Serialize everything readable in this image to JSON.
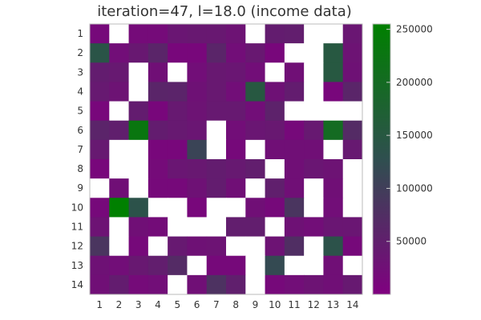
{
  "chart_data": {
    "type": "heatmap",
    "title": "iteration=47, l=18.0 (income data)",
    "xlabel": "",
    "ylabel": "",
    "x_categories": [
      "1",
      "2",
      "3",
      "4",
      "5",
      "6",
      "7",
      "8",
      "9",
      "10",
      "11",
      "12",
      "13",
      "14"
    ],
    "y_categories": [
      "1",
      "2",
      "3",
      "4",
      "5",
      "6",
      "7",
      "8",
      "9",
      "10",
      "11",
      "12",
      "13",
      "14"
    ],
    "colorbar": {
      "min": 0,
      "max": 255000,
      "ticks": [
        50000,
        100000,
        150000,
        200000,
        250000
      ],
      "tick_labels": [
        "50000",
        "100000",
        "150000",
        "200000",
        "250000"
      ]
    },
    "colors": {
      "low": "#800080",
      "mid": "#2f4f4f",
      "high": "#008000",
      "empty": "#ffffff"
    },
    "values": [
      [
        15000,
        null,
        18000,
        18000,
        35000,
        38000,
        38000,
        30000,
        null,
        45000,
        48000,
        null,
        null,
        35000
      ],
      [
        140000,
        22000,
        38000,
        60000,
        12000,
        12000,
        60000,
        22000,
        38000,
        12000,
        null,
        null,
        150000,
        30000
      ],
      [
        45000,
        40000,
        null,
        25000,
        null,
        22000,
        38000,
        35000,
        22000,
        null,
        25000,
        null,
        150000,
        28000
      ],
      [
        40000,
        30000,
        null,
        60000,
        58000,
        28000,
        38000,
        22000,
        150000,
        28000,
        45000,
        null,
        12000,
        60000
      ],
      [
        12000,
        null,
        45000,
        12000,
        40000,
        30000,
        40000,
        40000,
        22000,
        55000,
        null,
        null,
        null,
        null
      ],
      [
        58000,
        50000,
        230000,
        45000,
        40000,
        35000,
        null,
        22000,
        35000,
        38000,
        15000,
        40000,
        200000,
        70000
      ],
      [
        40000,
        null,
        null,
        12000,
        12000,
        110000,
        null,
        15000,
        null,
        25000,
        25000,
        25000,
        null,
        40000
      ],
      [
        12000,
        null,
        null,
        18000,
        35000,
        38000,
        45000,
        40000,
        48000,
        null,
        25000,
        35000,
        30000,
        null
      ],
      [
        null,
        25000,
        null,
        15000,
        15000,
        28000,
        45000,
        25000,
        null,
        50000,
        25000,
        null,
        25000,
        null
      ],
      [
        15000,
        255000,
        135000,
        null,
        null,
        12000,
        null,
        null,
        25000,
        15000,
        85000,
        null,
        22000,
        null
      ],
      [
        30000,
        null,
        25000,
        20000,
        null,
        null,
        null,
        48000,
        48000,
        null,
        28000,
        22000,
        35000,
        35000
      ],
      [
        85000,
        null,
        15000,
        null,
        40000,
        28000,
        30000,
        null,
        null,
        30000,
        75000,
        null,
        135000,
        15000
      ],
      [
        28000,
        22000,
        38000,
        48000,
        70000,
        null,
        15000,
        15000,
        null,
        120000,
        null,
        null,
        25000,
        null
      ],
      [
        25000,
        45000,
        18000,
        22000,
        null,
        25000,
        80000,
        50000,
        null,
        15000,
        22000,
        30000,
        25000,
        40000
      ]
    ]
  }
}
